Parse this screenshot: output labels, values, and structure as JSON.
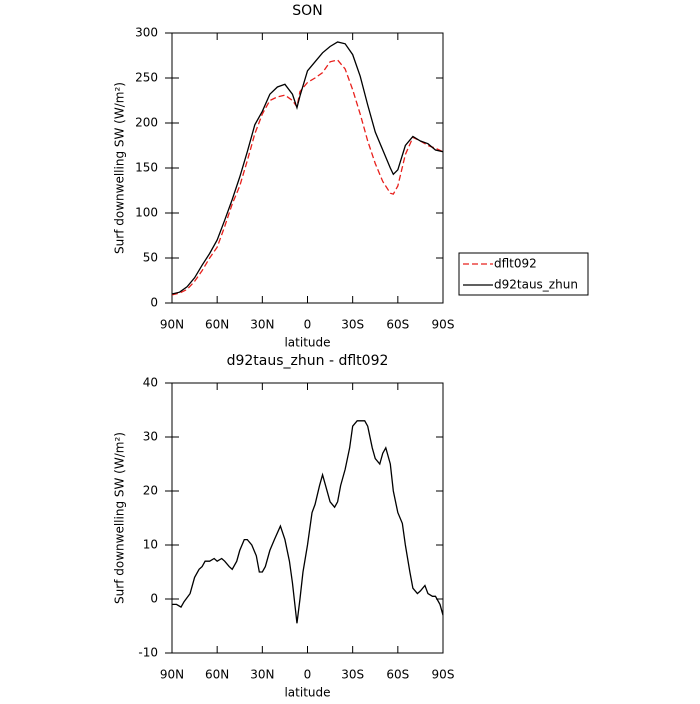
{
  "chart_data": [
    {
      "type": "line",
      "title": "SON",
      "xlabel": "latitude",
      "ylabel": "Surf downwelling SW (W/m²)",
      "x": [
        90,
        85,
        80,
        75,
        70,
        65,
        60,
        55,
        50,
        45,
        40,
        35,
        30,
        25,
        20,
        15,
        10,
        7,
        5,
        0,
        -5,
        -10,
        -15,
        -20,
        -25,
        -30,
        -35,
        -40,
        -45,
        -50,
        -55,
        -57,
        -60,
        -65,
        -70,
        -75,
        -80,
        -85,
        -90
      ],
      "series": [
        {
          "name": "dflt092",
          "color": "#e8201c",
          "dash": true,
          "values": [
            9,
            11,
            15,
            24,
            36,
            50,
            62,
            85,
            110,
            130,
            158,
            188,
            210,
            225,
            229,
            231,
            225,
            218,
            235,
            245,
            250,
            256,
            268,
            270,
            260,
            237,
            210,
            180,
            155,
            135,
            122,
            121,
            130,
            165,
            184,
            180,
            175,
            172,
            168
          ]
        },
        {
          "name": "d92taus_zhun",
          "color": "#000000",
          "dash": false,
          "values": [
            10,
            12,
            18,
            28,
            42,
            55,
            70,
            92,
            115,
            140,
            168,
            198,
            213,
            232,
            240,
            243,
            232,
            217,
            230,
            258,
            268,
            278,
            285,
            290,
            288,
            276,
            252,
            220,
            190,
            170,
            150,
            143,
            148,
            175,
            185,
            180,
            177,
            170,
            168
          ]
        }
      ],
      "xlim": [
        90,
        -90
      ],
      "xticks": [
        {
          "value": 90,
          "label": "90N"
        },
        {
          "value": 60,
          "label": "60N"
        },
        {
          "value": 30,
          "label": "30N"
        },
        0,
        {
          "value": -30,
          "label": "30S"
        },
        {
          "value": -60,
          "label": "60S"
        },
        {
          "value": -90,
          "label": "90S"
        }
      ],
      "ylim": [
        0,
        300
      ],
      "yticks": [
        0,
        50,
        100,
        150,
        200,
        250,
        300
      ],
      "legend": "right"
    },
    {
      "type": "line",
      "title": "d92taus_zhun - dflt092",
      "xlabel": "latitude",
      "ylabel": "Surf downwelling SW (W/m²)",
      "x": [
        90,
        87,
        84,
        82,
        78,
        75,
        72,
        70,
        68,
        65,
        62,
        60,
        57,
        55,
        52,
        50,
        47,
        45,
        42,
        40,
        37,
        34,
        32,
        30,
        28,
        25,
        22,
        18,
        15,
        12,
        10,
        8,
        7,
        5,
        3,
        0,
        -3,
        -5,
        -8,
        -10,
        -12,
        -15,
        -18,
        -20,
        -22,
        -25,
        -28,
        -30,
        -33,
        -35,
        -38,
        -40,
        -43,
        -45,
        -48,
        -50,
        -52,
        -55,
        -57,
        -60,
        -63,
        -65,
        -68,
        -70,
        -73,
        -75,
        -78,
        -80,
        -83,
        -85,
        -88,
        -90
      ],
      "series": [
        {
          "color": "#000000",
          "dash": false,
          "values": [
            -1,
            -1,
            -1.5,
            -0.5,
            1,
            4,
            5.5,
            6,
            7,
            7,
            7.5,
            7,
            7.5,
            7,
            6,
            5.5,
            7,
            9,
            11,
            11,
            10,
            8,
            5,
            5,
            6,
            9,
            11,
            13.5,
            11,
            7,
            3,
            -2,
            -4.5,
            0,
            5,
            10,
            16,
            17.5,
            21,
            23,
            21,
            18,
            17,
            18,
            21,
            24,
            28,
            32,
            33,
            33,
            33,
            32,
            28,
            26,
            25,
            27,
            28,
            25,
            20,
            16,
            14,
            10,
            5,
            2,
            1,
            1.5,
            2.5,
            1,
            0.5,
            0.5,
            -1,
            -3
          ]
        }
      ],
      "xlim": [
        90,
        -90
      ],
      "xticks": [
        {
          "value": 90,
          "label": "90N"
        },
        {
          "value": 60,
          "label": "60N"
        },
        {
          "value": 30,
          "label": "30N"
        },
        0,
        {
          "value": -30,
          "label": "30S"
        },
        {
          "value": -60,
          "label": "60S"
        },
        {
          "value": -90,
          "label": "90S"
        }
      ],
      "ylim": [
        -10,
        40
      ],
      "yticks": [
        -10,
        0,
        10,
        20,
        30,
        40
      ]
    }
  ]
}
